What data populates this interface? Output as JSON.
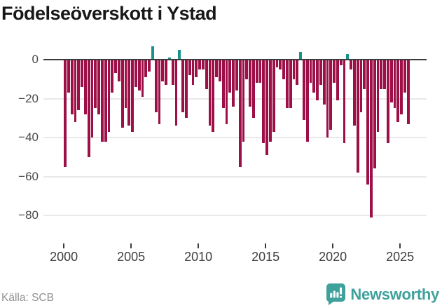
{
  "title": "Födelseöverskott i Ystad",
  "footer": {
    "source_label": "Källa: SCB",
    "brand": "Newsworthy"
  },
  "colors": {
    "negative_bar": "#9d1047",
    "positive_bar": "#15938c",
    "axis_line": "#3b3b3b",
    "gridline": "#e9e9e9",
    "axis_label": "#4a4a4a",
    "title_text": "#181818",
    "source_text": "#8f8f8f",
    "brand_teal": "#3fa19c",
    "background": "#ffffff"
  },
  "chart_data": {
    "type": "bar",
    "title": "Födelseöverskott i Ystad",
    "xlabel": "",
    "ylabel": "",
    "grid": "horizontal",
    "legend": "none",
    "ylim": [
      -90,
      10
    ],
    "y_ticks": [
      0,
      -20,
      -40,
      -60,
      -80
    ],
    "y_tick_labels": [
      "0",
      "−20",
      "−40",
      "−60",
      "−80"
    ],
    "x_tick_years": [
      2000,
      2005,
      2010,
      2015,
      2020,
      2025
    ],
    "x_tick_labels": [
      "2000",
      "2005",
      "2010",
      "2015",
      "2020",
      "2025"
    ],
    "x": [
      "2000Q1",
      "2000Q2",
      "2000Q3",
      "2000Q4",
      "2001Q1",
      "2001Q2",
      "2001Q3",
      "2001Q4",
      "2002Q1",
      "2002Q2",
      "2002Q3",
      "2002Q4",
      "2003Q1",
      "2003Q2",
      "2003Q3",
      "2003Q4",
      "2004Q1",
      "2004Q2",
      "2004Q3",
      "2004Q4",
      "2005Q1",
      "2005Q2",
      "2005Q3",
      "2005Q4",
      "2006Q1",
      "2006Q2",
      "2006Q3",
      "2006Q4",
      "2007Q1",
      "2007Q2",
      "2007Q3",
      "2007Q4",
      "2008Q1",
      "2008Q2",
      "2008Q3",
      "2008Q4",
      "2009Q1",
      "2009Q2",
      "2009Q3",
      "2009Q4",
      "2010Q1",
      "2010Q2",
      "2010Q3",
      "2010Q4",
      "2011Q1",
      "2011Q2",
      "2011Q3",
      "2011Q4",
      "2012Q1",
      "2012Q2",
      "2012Q3",
      "2012Q4",
      "2013Q1",
      "2013Q2",
      "2013Q3",
      "2013Q4",
      "2014Q1",
      "2014Q2",
      "2014Q3",
      "2014Q4",
      "2015Q1",
      "2015Q2",
      "2015Q3",
      "2015Q4",
      "2016Q1",
      "2016Q2",
      "2016Q3",
      "2016Q4",
      "2017Q1",
      "2017Q2",
      "2017Q3",
      "2017Q4",
      "2018Q1",
      "2018Q2",
      "2018Q3",
      "2018Q4",
      "2019Q1",
      "2019Q2",
      "2019Q3",
      "2019Q4",
      "2020Q1",
      "2020Q2",
      "2020Q3",
      "2020Q4",
      "2021Q1",
      "2021Q2",
      "2021Q3",
      "2021Q4",
      "2022Q1",
      "2022Q2",
      "2022Q3",
      "2022Q4",
      "2023Q1",
      "2023Q2",
      "2023Q3",
      "2023Q4",
      "2024Q1",
      "2024Q2",
      "2024Q3",
      "2024Q4",
      "2025Q1",
      "2025Q2",
      "2025Q3"
    ],
    "values": [
      -55,
      -17,
      -28,
      -32,
      -26,
      -14,
      -28,
      -50,
      -40,
      -25,
      -28,
      -42,
      -42,
      -37,
      -17,
      -7,
      -11,
      -35,
      -25,
      -34,
      -37,
      -14,
      -16,
      -19,
      -9,
      -6,
      7,
      -27,
      -33,
      -11,
      -13,
      1,
      -13,
      -34,
      5,
      -27,
      -30,
      -8,
      -13,
      -9,
      -5,
      -5,
      -15,
      -34,
      -37,
      -9,
      -11,
      -25,
      -33,
      -17,
      -24,
      -16,
      -55,
      -42,
      -10,
      -24,
      -30,
      -12,
      -12,
      -43,
      -49,
      -42,
      -37,
      -4,
      -5,
      -10,
      -25,
      -25,
      -10,
      -13,
      4,
      -31,
      -42,
      -12,
      -17,
      -21,
      -13,
      -23,
      -40,
      -36,
      -12,
      -21,
      -3,
      -43,
      3,
      -5,
      -34,
      -58,
      -27,
      -15,
      -64,
      -81,
      -56,
      -37,
      -15,
      -15,
      -43,
      -22,
      -25,
      -32,
      -28,
      -17,
      -33
    ]
  }
}
